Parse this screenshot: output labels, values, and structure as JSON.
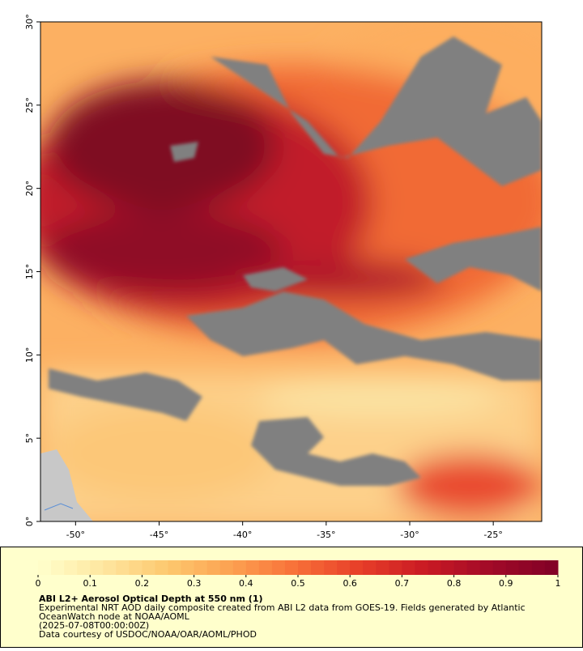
{
  "map": {
    "type": "map",
    "xlim": [
      -52.1,
      -22.1
    ],
    "ylim": [
      0,
      30
    ],
    "xticks": [
      {
        "value": -50,
        "label": "-50°"
      },
      {
        "value": -45,
        "label": "-45°"
      },
      {
        "value": -40,
        "label": "-40°"
      },
      {
        "value": -35,
        "label": "-35°"
      },
      {
        "value": -30,
        "label": "-30°"
      },
      {
        "value": -25,
        "label": "-25°"
      }
    ],
    "yticks": [
      {
        "value": 0,
        "label": "0°"
      },
      {
        "value": 5,
        "label": "5°"
      },
      {
        "value": 10,
        "label": "10°"
      },
      {
        "value": 15,
        "label": "15°"
      },
      {
        "value": 20,
        "label": "20°"
      },
      {
        "value": 25,
        "label": "25°"
      },
      {
        "value": 30,
        "label": "30°"
      }
    ],
    "colorbar": {
      "lim": [
        0,
        1
      ],
      "ticks": [
        0,
        0.1,
        0.2,
        0.3,
        0.4,
        0.5,
        0.6,
        0.7,
        0.8,
        0.9,
        1
      ]
    },
    "title": "ABI L2+ Aerosol Optical Depth at 550 nm (1)",
    "description": [
      "Experimental NRT AOD daily composite created from ABI L2 data from GOES-19. Fields generated by Atlantic",
      "OceanWatch node at NOAA/AOML"
    ],
    "time": "(2025-07-08T00:00:00Z)",
    "credit": "Data courtesy of USDOC/NOAA/OAR/AOML/PHOD"
  }
}
